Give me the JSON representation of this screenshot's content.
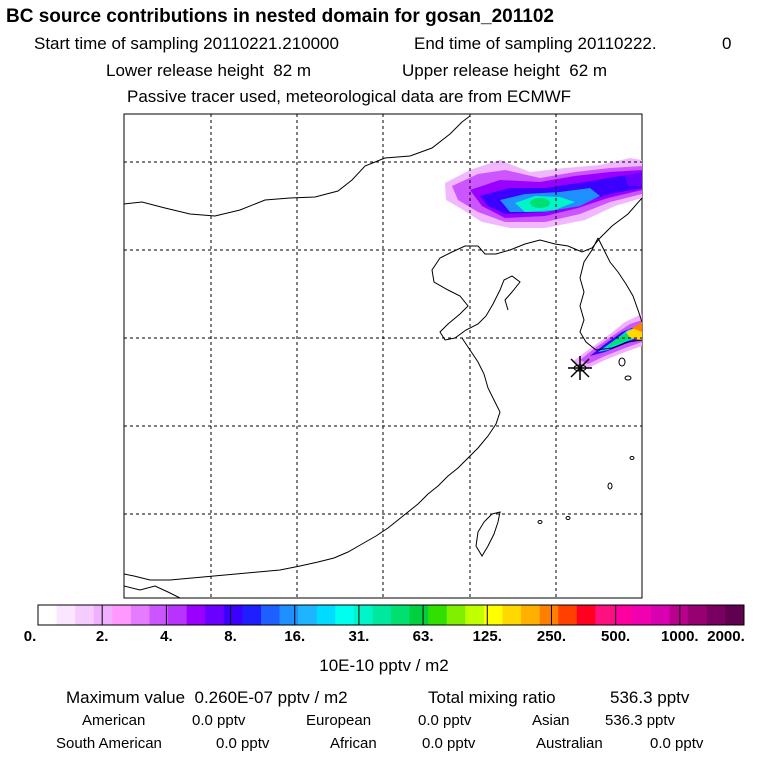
{
  "title": "BC  source contributions in nested domain for gosan_201102",
  "header": {
    "start_label": "Start time of sampling",
    "start_value": "20110221.210000",
    "end_label": "End time of sampling",
    "end_value": "20110222.",
    "end_extra": "0",
    "lower_label": "Lower release height",
    "lower_value": "82 m",
    "upper_label": "Upper release height",
    "upper_value": "62 m",
    "note": "Passive tracer used, meteorological data are from ECMWF"
  },
  "colorbar": {
    "ticks": [
      "0.",
      "2.",
      "4.",
      "8.",
      "16.",
      "31.",
      "63.",
      "125.",
      "250.",
      "500.",
      "1000.",
      "2000."
    ],
    "unit": "10E-10 pptv / m2",
    "colors": [
      "#ffffff",
      "#fbe6ff",
      "#f6ccff",
      "#f0b0ff",
      "#ff99ff",
      "#e57cff",
      "#cc55ff",
      "#b833ff",
      "#9900ff",
      "#6a00ff",
      "#3c00ff",
      "#1e1eff",
      "#1e60ff",
      "#1e90ff",
      "#1eb4ff",
      "#00dcff",
      "#00ffee",
      "#00f5c8",
      "#00e8a0",
      "#00e070",
      "#00d040",
      "#30e000",
      "#80f000",
      "#c0ff00",
      "#ffff00",
      "#ffd800",
      "#ffb000",
      "#ff8000",
      "#ff4000",
      "#ff0020",
      "#ff1080",
      "#ff00a0",
      "#f000b0",
      "#d800b0",
      "#b8008c",
      "#960070",
      "#780060",
      "#600050"
    ]
  },
  "stats": {
    "max_label": "Maximum value",
    "max_value": "0.260E-07 pptv / m2",
    "total_label": "Total mixing ratio",
    "total_value": "536.3 pptv"
  },
  "regions": [
    {
      "name": "American",
      "value": "0.0 pptv"
    },
    {
      "name": "European",
      "value": "0.0 pptv"
    },
    {
      "name": "Asian",
      "value": "536.3 pptv"
    },
    {
      "name": "South American",
      "value": "0.0 pptv"
    },
    {
      "name": "African",
      "value": "0.0 pptv"
    },
    {
      "name": "Australian",
      "value": "0.0 pptv"
    }
  ]
}
